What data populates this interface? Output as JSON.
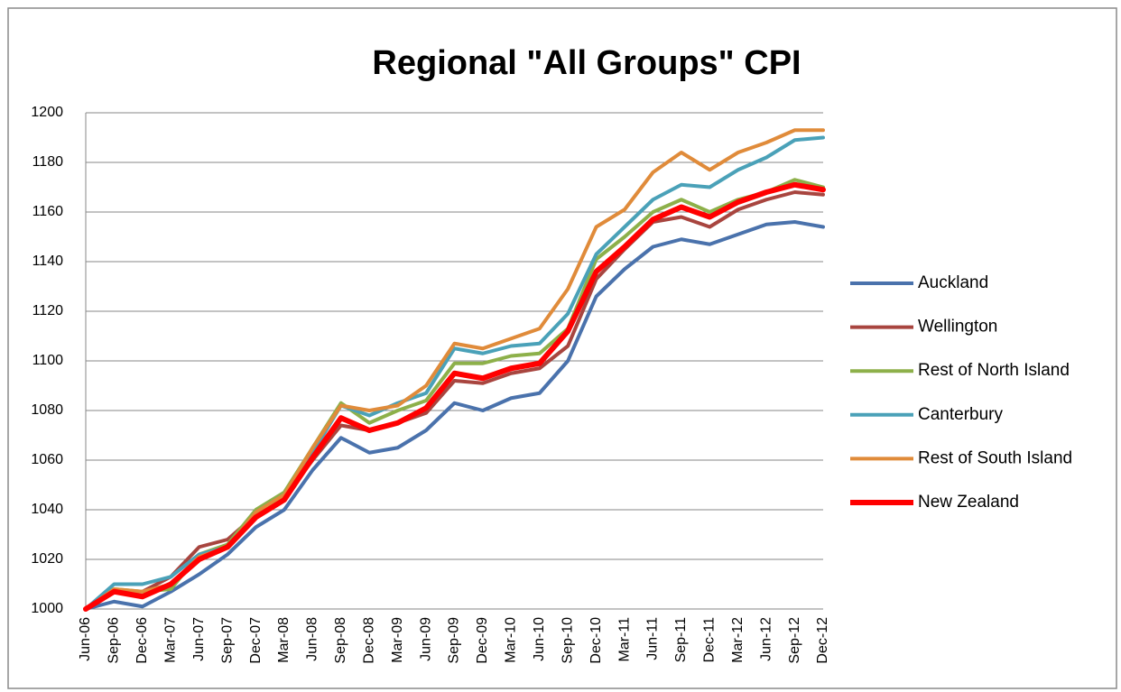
{
  "chart_data": {
    "type": "line",
    "title": "Regional \"All Groups\" CPI",
    "categories": [
      "Jun-06",
      "Sep-06",
      "Dec-06",
      "Mar-07",
      "Jun-07",
      "Sep-07",
      "Dec-07",
      "Mar-08",
      "Jun-08",
      "Sep-08",
      "Dec-08",
      "Mar-09",
      "Jun-09",
      "Sep-09",
      "Dec-09",
      "Mar-10",
      "Jun-10",
      "Sep-10",
      "Dec-10",
      "Mar-11",
      "Jun-11",
      "Sep-11",
      "Dec-11",
      "Mar-12",
      "Jun-12",
      "Sep-12",
      "Dec-12"
    ],
    "series": [
      {
        "name": "Auckland",
        "color": "#4a72ac",
        "values": [
          1000,
          1003,
          1001,
          1007,
          1014,
          1022,
          1033,
          1040,
          1056,
          1069,
          1063,
          1065,
          1072,
          1083,
          1080,
          1085,
          1087,
          1100,
          1126,
          1137,
          1146,
          1149,
          1147,
          1151,
          1155,
          1156,
          1154
        ]
      },
      {
        "name": "Wellington",
        "color": "#a8453f",
        "values": [
          1000,
          1007,
          1007,
          1013,
          1025,
          1028,
          1038,
          1045,
          1060,
          1074,
          1072,
          1075,
          1079,
          1092,
          1091,
          1095,
          1097,
          1106,
          1133,
          1145,
          1156,
          1158,
          1154,
          1161,
          1165,
          1168,
          1167
        ]
      },
      {
        "name": "Rest of North Island",
        "color": "#8db04a",
        "values": [
          1000,
          1008,
          1007,
          1008,
          1022,
          1026,
          1040,
          1047,
          1065,
          1083,
          1075,
          1080,
          1084,
          1099,
          1099,
          1102,
          1103,
          1113,
          1141,
          1150,
          1160,
          1165,
          1160,
          1165,
          1168,
          1173,
          1170
        ]
      },
      {
        "name": "Canterbury",
        "color": "#4aa1b8",
        "values": [
          1000,
          1010,
          1010,
          1013,
          1022,
          1025,
          1039,
          1046,
          1063,
          1082,
          1078,
          1083,
          1087,
          1105,
          1103,
          1106,
          1107,
          1119,
          1143,
          1154,
          1165,
          1171,
          1170,
          1177,
          1182,
          1189,
          1190
        ]
      },
      {
        "name": "Rest of South Island",
        "color": "#e08b3a",
        "values": [
          1000,
          1008,
          1007,
          1010,
          1021,
          1025,
          1039,
          1046,
          1065,
          1082,
          1080,
          1082,
          1090,
          1107,
          1105,
          1109,
          1113,
          1129,
          1154,
          1161,
          1176,
          1184,
          1177,
          1184,
          1188,
          1193,
          1193
        ]
      },
      {
        "name": "New Zealand",
        "color": "#ff0000",
        "values": [
          1000,
          1007,
          1005,
          1010,
          1020,
          1025,
          1037,
          1044,
          1061,
          1077,
          1072,
          1075,
          1081,
          1095,
          1093,
          1097,
          1099,
          1112,
          1136,
          1146,
          1157,
          1162,
          1158,
          1164,
          1168,
          1171,
          1169
        ]
      }
    ],
    "ylim": [
      1000,
      1200
    ],
    "yticks": [
      1000,
      1020,
      1040,
      1060,
      1080,
      1100,
      1120,
      1140,
      1160,
      1180,
      1200
    ],
    "grid": true,
    "legend": "right"
  }
}
